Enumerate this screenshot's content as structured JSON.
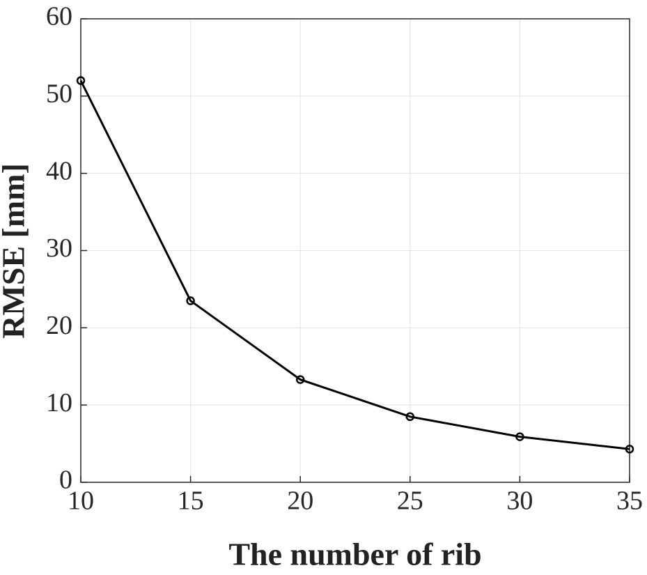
{
  "chart_data": {
    "type": "line",
    "xlabel": "The number of rib",
    "ylabel": "RMSE [mm]",
    "x": [
      10,
      15,
      20,
      25,
      30,
      35
    ],
    "values": [
      52,
      23.5,
      13.3,
      8.5,
      5.9,
      4.3
    ],
    "color": "#000000",
    "marker": "circle",
    "xlim": [
      10,
      35
    ],
    "xticks": [
      10,
      15,
      20,
      25,
      30,
      35
    ],
    "ylim": [
      0,
      60
    ],
    "yticks": [
      0,
      10,
      20,
      30,
      40,
      50,
      60
    ],
    "grid": true
  }
}
